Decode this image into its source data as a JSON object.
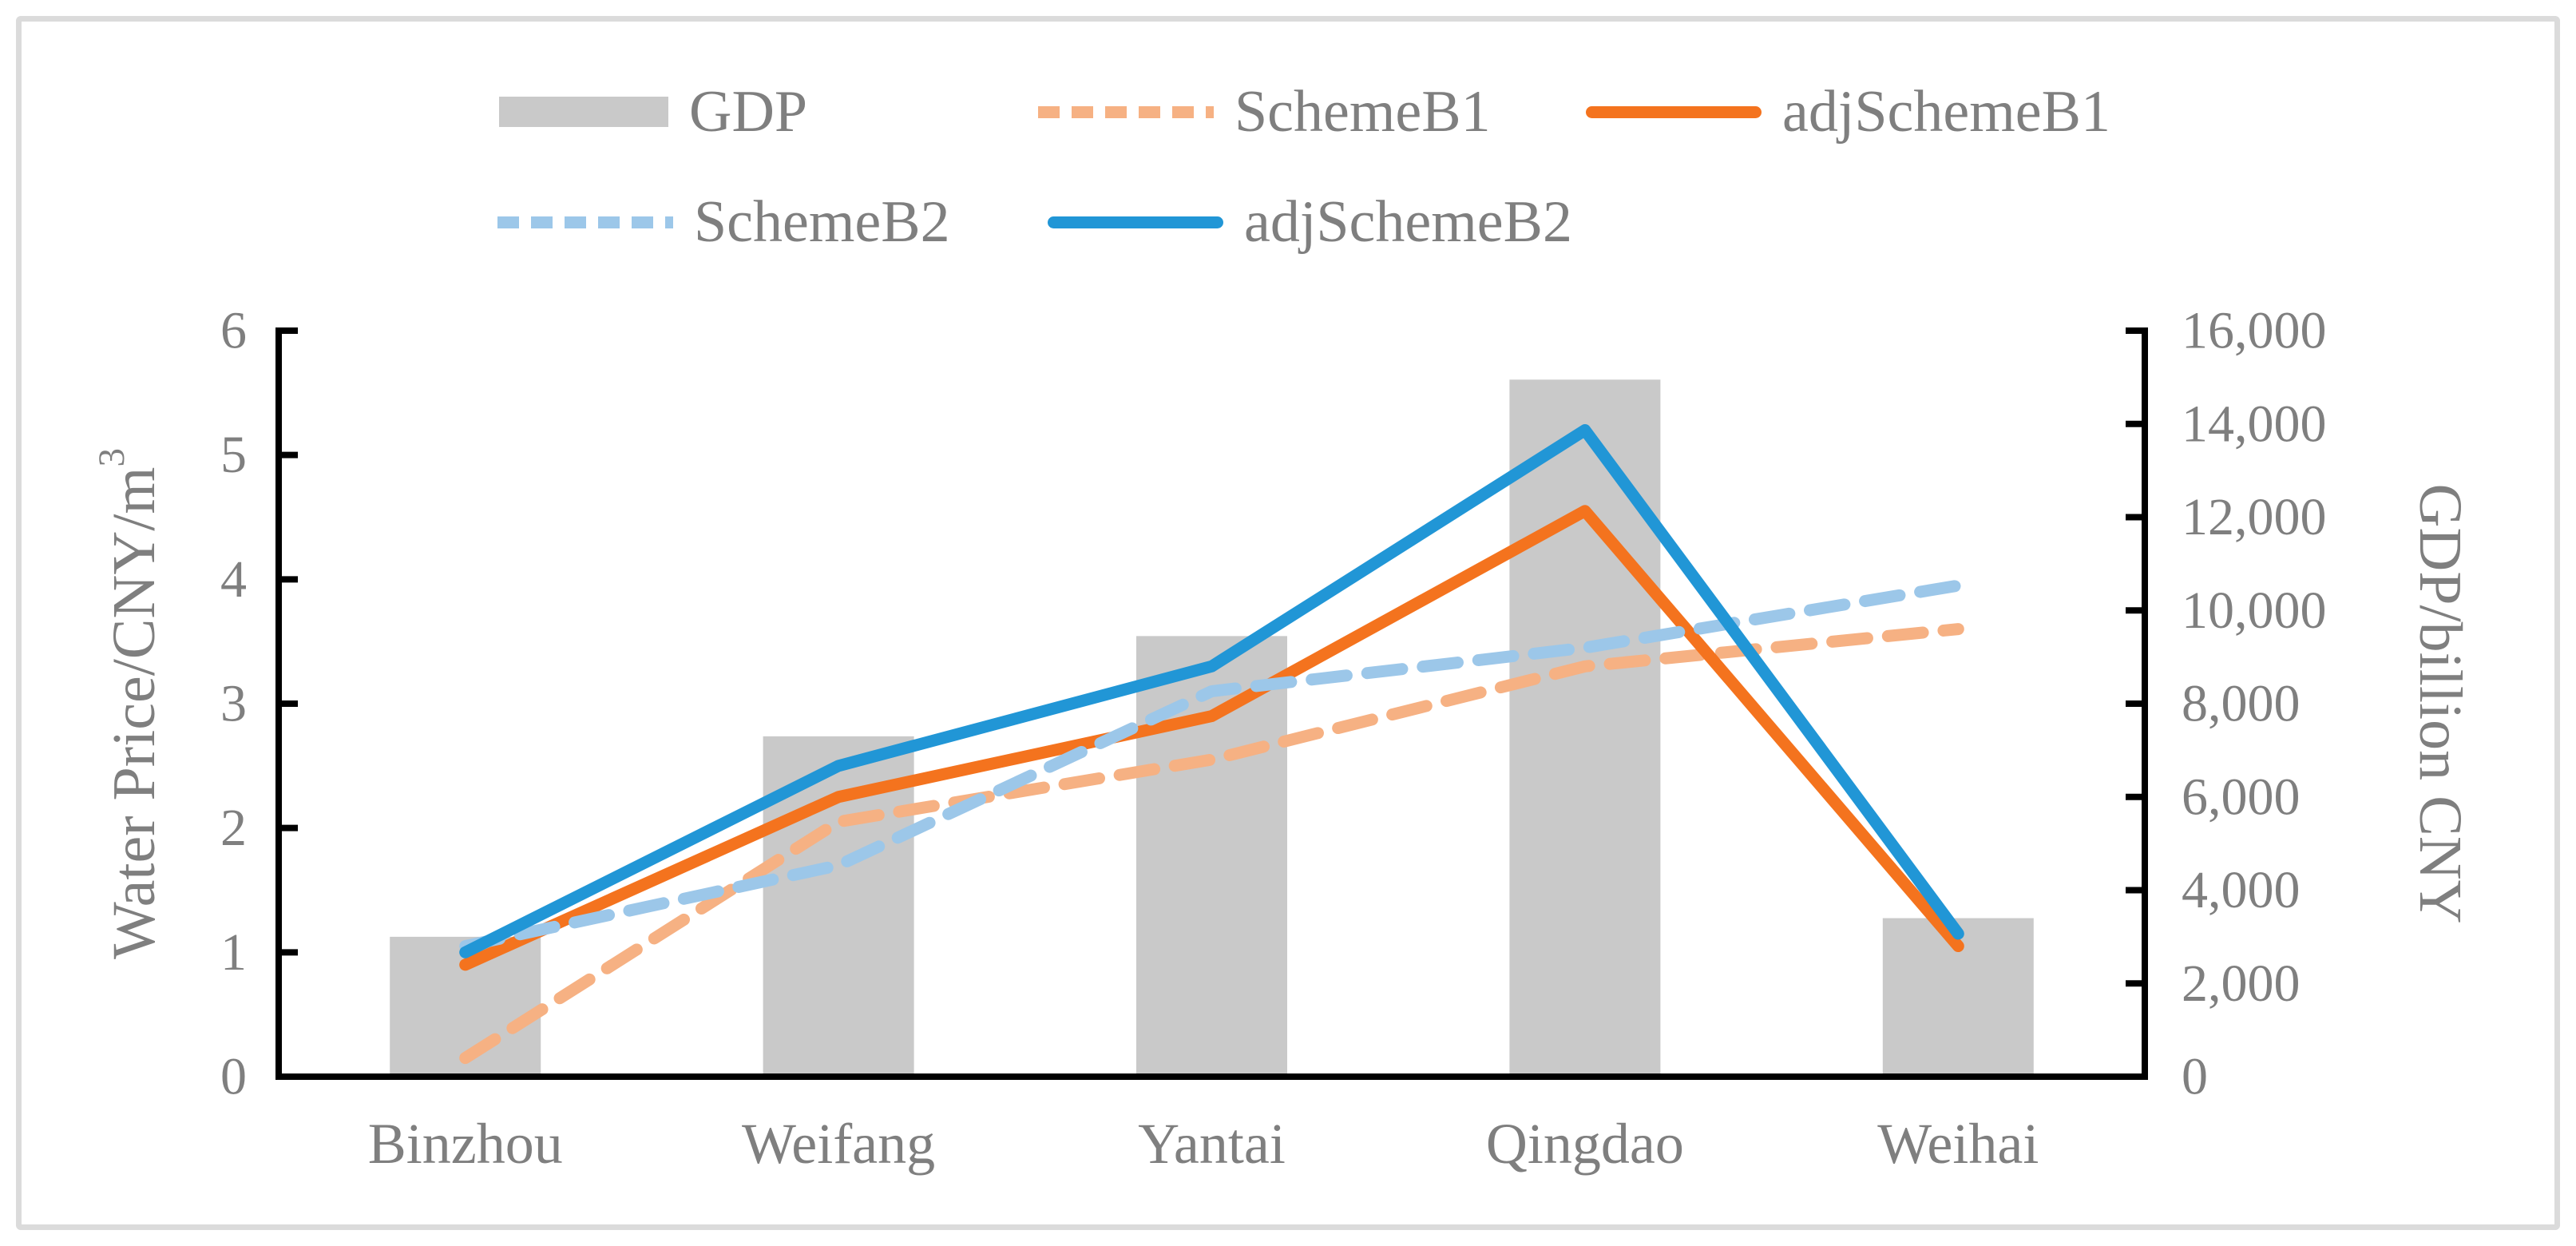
{
  "chart_data": {
    "type": "combo-bar-line",
    "categories": [
      "Binzhou",
      "Weifang",
      "Yantai",
      "Qingdao",
      "Weihai"
    ],
    "bar_series": {
      "name": "GDP",
      "axis": "right",
      "color": "#C9C9C9",
      "values": [
        3000,
        7300,
        9450,
        14950,
        3400
      ]
    },
    "line_series": [
      {
        "name": "SchemeB1",
        "style": "dashed",
        "color": "#F6B183",
        "axis": "left",
        "values": [
          0.15,
          2.05,
          2.55,
          3.3,
          3.6
        ]
      },
      {
        "name": "adjSchemeB1",
        "style": "solid",
        "color": "#F4731E",
        "axis": "left",
        "values": [
          0.9,
          2.25,
          2.9,
          4.55,
          1.05
        ]
      },
      {
        "name": "SchemeB2",
        "style": "dashed",
        "color": "#9CC7E9",
        "axis": "left",
        "values": [
          1.05,
          1.7,
          3.1,
          3.45,
          3.95
        ]
      },
      {
        "name": "adjSchemeB2",
        "style": "solid",
        "color": "#2196D6",
        "axis": "left",
        "values": [
          1.0,
          2.5,
          3.3,
          5.2,
          1.15
        ]
      }
    ],
    "left_axis": {
      "title": "Water Price/CNY/m³",
      "min": 0,
      "max": 6,
      "step": 1,
      "tick_labels": [
        "0",
        "1",
        "2",
        "3",
        "4",
        "5",
        "6"
      ]
    },
    "right_axis": {
      "title": "GDP/billion CNY",
      "min": 0,
      "max": 16000,
      "step": 2000,
      "tick_labels": [
        "0",
        "2,000",
        "4,000",
        "6,000",
        "8,000",
        "10,000",
        "12,000",
        "14,000",
        "16,000"
      ]
    },
    "x_axis": {
      "tick_labels": [
        "Binzhou",
        "Weifang",
        "Yantai",
        "Qingdao",
        "Weihai"
      ]
    },
    "grid": false,
    "legend_position": "top"
  },
  "legend": {
    "items": [
      {
        "label": "GDP",
        "marker": "bar-swatch"
      },
      {
        "label": "SchemeB1",
        "marker": "dashed-line"
      },
      {
        "label": "adjSchemeB1",
        "marker": "solid-line"
      },
      {
        "label": "SchemeB2",
        "marker": "dashed-line"
      },
      {
        "label": "adjSchemeB2",
        "marker": "solid-line"
      }
    ]
  },
  "colors": {
    "text": "#7F7F7F",
    "axis": "#000000",
    "frame_border": "#DBDBDB",
    "background": "#FFFFFF"
  }
}
